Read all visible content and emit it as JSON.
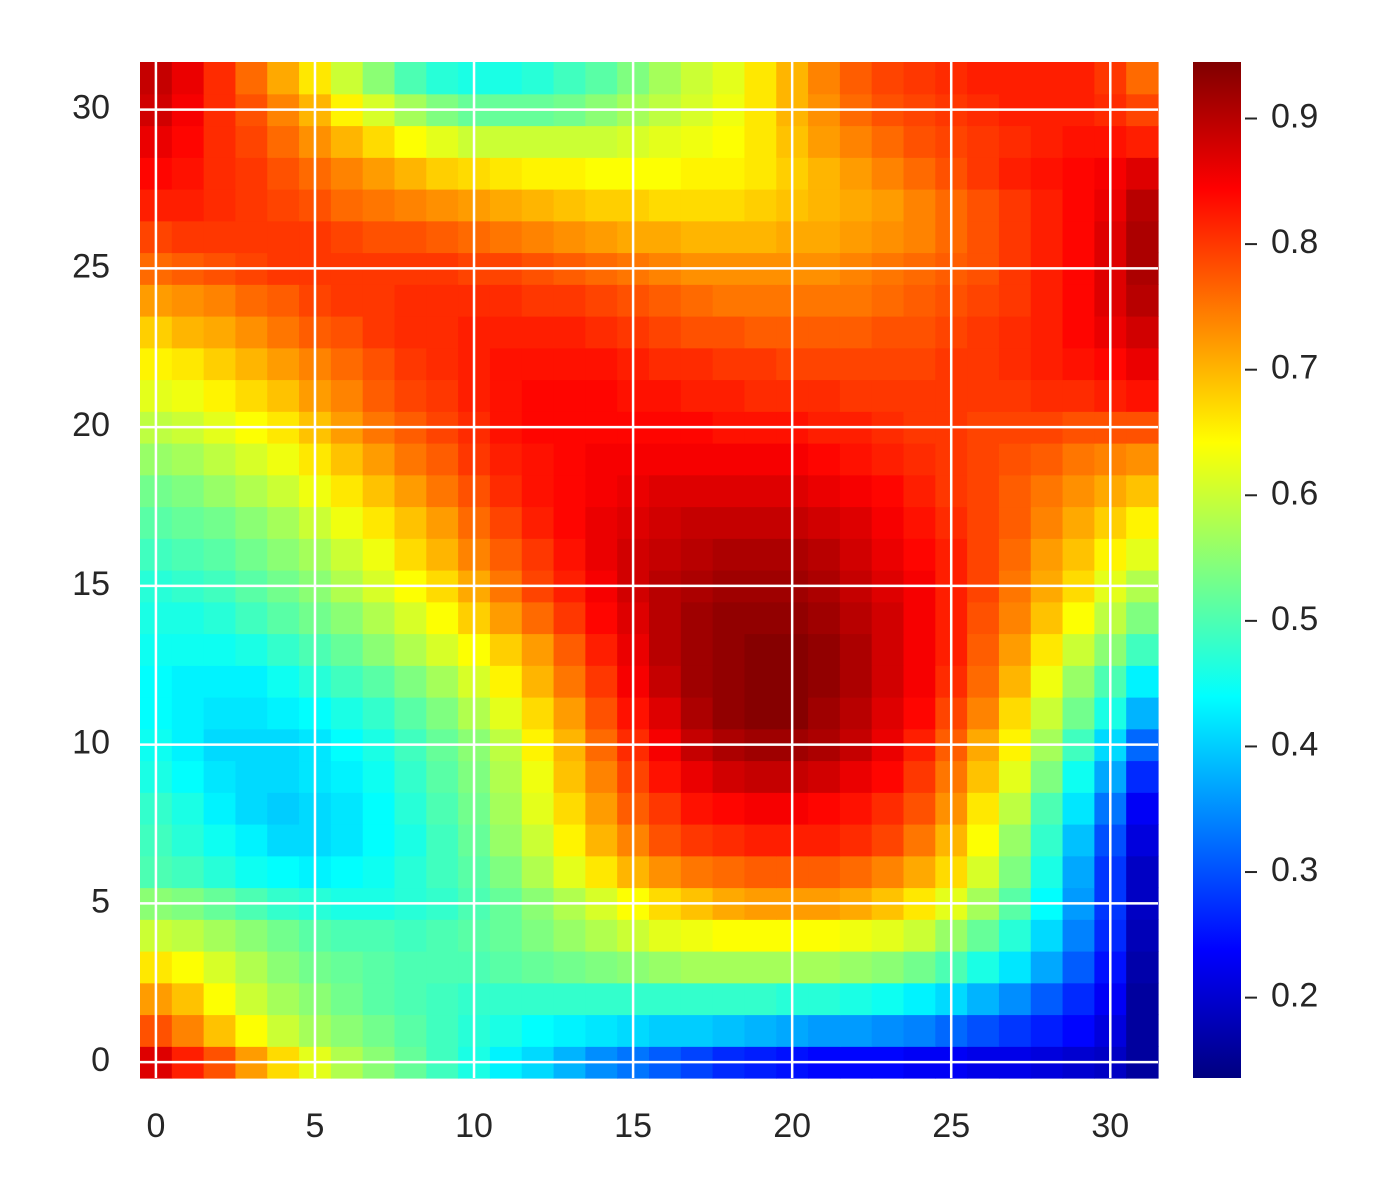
{
  "chart_data": {
    "type": "heatmap",
    "colormap": "jet",
    "clim": [
      0.136,
      0.945
    ],
    "xlim": [
      -0.5,
      31.5
    ],
    "ylim": [
      -0.5,
      31.5
    ],
    "xticks": [
      0,
      5,
      10,
      15,
      20,
      25,
      30
    ],
    "yticks": [
      0,
      5,
      10,
      15,
      20,
      25,
      30
    ],
    "colorbar_ticks": [
      0.2,
      0.3,
      0.4,
      0.5,
      0.6,
      0.7,
      0.8,
      0.9
    ],
    "grid": true,
    "grid_color": "#ffffff",
    "z": [
      [
        0.87,
        0.82,
        0.78,
        0.72,
        0.67,
        0.62,
        0.58,
        0.55,
        0.52,
        0.49,
        0.46,
        0.43,
        0.41,
        0.38,
        0.35,
        0.33,
        0.31,
        0.29,
        0.27,
        0.26,
        0.25,
        0.24,
        0.24,
        0.24,
        0.23,
        0.23,
        0.22,
        0.22,
        0.21,
        0.2,
        0.19,
        0.16
      ],
      [
        0.78,
        0.74,
        0.69,
        0.64,
        0.6,
        0.57,
        0.55,
        0.53,
        0.51,
        0.49,
        0.47,
        0.46,
        0.44,
        0.43,
        0.42,
        0.41,
        0.4,
        0.4,
        0.39,
        0.38,
        0.37,
        0.36,
        0.36,
        0.35,
        0.34,
        0.32,
        0.3,
        0.28,
        0.26,
        0.24,
        0.21,
        0.16
      ],
      [
        0.72,
        0.69,
        0.64,
        0.6,
        0.57,
        0.55,
        0.53,
        0.51,
        0.5,
        0.49,
        0.48,
        0.48,
        0.48,
        0.48,
        0.48,
        0.48,
        0.48,
        0.48,
        0.48,
        0.48,
        0.47,
        0.47,
        0.46,
        0.45,
        0.43,
        0.41,
        0.38,
        0.35,
        0.31,
        0.27,
        0.23,
        0.16
      ],
      [
        0.66,
        0.64,
        0.61,
        0.58,
        0.55,
        0.53,
        0.52,
        0.51,
        0.5,
        0.5,
        0.5,
        0.51,
        0.52,
        0.53,
        0.54,
        0.55,
        0.56,
        0.57,
        0.57,
        0.57,
        0.57,
        0.57,
        0.56,
        0.55,
        0.53,
        0.5,
        0.46,
        0.42,
        0.37,
        0.31,
        0.25,
        0.17
      ],
      [
        0.6,
        0.59,
        0.57,
        0.55,
        0.53,
        0.51,
        0.5,
        0.5,
        0.49,
        0.5,
        0.51,
        0.52,
        0.54,
        0.56,
        0.58,
        0.6,
        0.62,
        0.63,
        0.64,
        0.64,
        0.64,
        0.64,
        0.63,
        0.62,
        0.6,
        0.56,
        0.52,
        0.47,
        0.41,
        0.34,
        0.27,
        0.18
      ],
      [
        0.55,
        0.54,
        0.52,
        0.5,
        0.48,
        0.47,
        0.46,
        0.46,
        0.47,
        0.48,
        0.5,
        0.52,
        0.55,
        0.58,
        0.61,
        0.64,
        0.67,
        0.69,
        0.71,
        0.72,
        0.72,
        0.72,
        0.71,
        0.69,
        0.66,
        0.62,
        0.57,
        0.51,
        0.44,
        0.36,
        0.28,
        0.19
      ],
      [
        0.5,
        0.49,
        0.47,
        0.45,
        0.44,
        0.43,
        0.44,
        0.45,
        0.47,
        0.49,
        0.51,
        0.54,
        0.58,
        0.62,
        0.66,
        0.7,
        0.73,
        0.75,
        0.76,
        0.77,
        0.77,
        0.77,
        0.76,
        0.74,
        0.71,
        0.67,
        0.61,
        0.54,
        0.46,
        0.37,
        0.28,
        0.19
      ],
      [
        0.49,
        0.47,
        0.45,
        0.43,
        0.41,
        0.41,
        0.42,
        0.44,
        0.46,
        0.49,
        0.52,
        0.56,
        0.6,
        0.65,
        0.7,
        0.74,
        0.78,
        0.8,
        0.81,
        0.82,
        0.82,
        0.82,
        0.81,
        0.79,
        0.75,
        0.7,
        0.64,
        0.56,
        0.48,
        0.39,
        0.3,
        0.21
      ],
      [
        0.48,
        0.46,
        0.43,
        0.41,
        0.4,
        0.41,
        0.42,
        0.44,
        0.47,
        0.5,
        0.53,
        0.57,
        0.62,
        0.67,
        0.72,
        0.77,
        0.8,
        0.83,
        0.84,
        0.85,
        0.85,
        0.84,
        0.83,
        0.81,
        0.78,
        0.73,
        0.66,
        0.59,
        0.5,
        0.42,
        0.33,
        0.23
      ],
      [
        0.46,
        0.44,
        0.42,
        0.41,
        0.41,
        0.42,
        0.43,
        0.45,
        0.48,
        0.51,
        0.54,
        0.58,
        0.63,
        0.69,
        0.74,
        0.79,
        0.83,
        0.86,
        0.88,
        0.89,
        0.89,
        0.88,
        0.86,
        0.84,
        0.8,
        0.75,
        0.69,
        0.62,
        0.54,
        0.45,
        0.37,
        0.27
      ],
      [
        0.45,
        0.43,
        0.41,
        0.41,
        0.41,
        0.42,
        0.44,
        0.46,
        0.49,
        0.52,
        0.55,
        0.59,
        0.65,
        0.7,
        0.76,
        0.81,
        0.85,
        0.89,
        0.91,
        0.92,
        0.92,
        0.91,
        0.89,
        0.86,
        0.82,
        0.77,
        0.71,
        0.65,
        0.57,
        0.49,
        0.41,
        0.32
      ],
      [
        0.44,
        0.43,
        0.42,
        0.42,
        0.43,
        0.44,
        0.46,
        0.48,
        0.51,
        0.54,
        0.58,
        0.62,
        0.67,
        0.72,
        0.78,
        0.83,
        0.87,
        0.91,
        0.93,
        0.94,
        0.94,
        0.92,
        0.9,
        0.87,
        0.84,
        0.79,
        0.74,
        0.67,
        0.6,
        0.53,
        0.46,
        0.38
      ],
      [
        0.44,
        0.43,
        0.43,
        0.43,
        0.45,
        0.47,
        0.49,
        0.51,
        0.54,
        0.57,
        0.61,
        0.65,
        0.7,
        0.75,
        0.8,
        0.85,
        0.89,
        0.92,
        0.93,
        0.94,
        0.94,
        0.93,
        0.91,
        0.88,
        0.85,
        0.81,
        0.76,
        0.7,
        0.63,
        0.56,
        0.5,
        0.43
      ],
      [
        0.45,
        0.45,
        0.45,
        0.46,
        0.48,
        0.5,
        0.52,
        0.55,
        0.58,
        0.61,
        0.64,
        0.68,
        0.72,
        0.77,
        0.82,
        0.86,
        0.9,
        0.92,
        0.93,
        0.94,
        0.94,
        0.93,
        0.91,
        0.88,
        0.85,
        0.82,
        0.77,
        0.72,
        0.66,
        0.6,
        0.55,
        0.49
      ],
      [
        0.46,
        0.46,
        0.47,
        0.49,
        0.51,
        0.53,
        0.55,
        0.58,
        0.61,
        0.64,
        0.68,
        0.72,
        0.76,
        0.8,
        0.84,
        0.87,
        0.9,
        0.92,
        0.93,
        0.93,
        0.93,
        0.92,
        0.9,
        0.88,
        0.85,
        0.82,
        0.78,
        0.74,
        0.69,
        0.64,
        0.59,
        0.54
      ],
      [
        0.47,
        0.48,
        0.49,
        0.51,
        0.53,
        0.55,
        0.58,
        0.61,
        0.64,
        0.67,
        0.71,
        0.75,
        0.79,
        0.82,
        0.85,
        0.88,
        0.9,
        0.91,
        0.92,
        0.92,
        0.92,
        0.91,
        0.89,
        0.87,
        0.85,
        0.82,
        0.79,
        0.75,
        0.71,
        0.67,
        0.62,
        0.58
      ],
      [
        0.49,
        0.5,
        0.51,
        0.53,
        0.55,
        0.57,
        0.6,
        0.63,
        0.67,
        0.7,
        0.74,
        0.77,
        0.8,
        0.83,
        0.86,
        0.88,
        0.89,
        0.9,
        0.91,
        0.91,
        0.91,
        0.9,
        0.88,
        0.86,
        0.84,
        0.82,
        0.79,
        0.76,
        0.72,
        0.69,
        0.65,
        0.62
      ],
      [
        0.51,
        0.52,
        0.53,
        0.55,
        0.57,
        0.6,
        0.63,
        0.66,
        0.69,
        0.72,
        0.76,
        0.79,
        0.82,
        0.84,
        0.86,
        0.87,
        0.88,
        0.89,
        0.89,
        0.89,
        0.89,
        0.88,
        0.87,
        0.85,
        0.83,
        0.81,
        0.79,
        0.77,
        0.74,
        0.71,
        0.68,
        0.65
      ],
      [
        0.53,
        0.54,
        0.56,
        0.58,
        0.6,
        0.63,
        0.66,
        0.69,
        0.72,
        0.75,
        0.78,
        0.81,
        0.83,
        0.84,
        0.85,
        0.86,
        0.87,
        0.87,
        0.87,
        0.87,
        0.87,
        0.86,
        0.85,
        0.84,
        0.82,
        0.8,
        0.79,
        0.77,
        0.75,
        0.73,
        0.71,
        0.69
      ],
      [
        0.56,
        0.57,
        0.59,
        0.61,
        0.63,
        0.66,
        0.69,
        0.72,
        0.75,
        0.77,
        0.8,
        0.82,
        0.83,
        0.84,
        0.85,
        0.85,
        0.85,
        0.85,
        0.85,
        0.85,
        0.85,
        0.84,
        0.83,
        0.82,
        0.81,
        0.8,
        0.79,
        0.78,
        0.77,
        0.75,
        0.74,
        0.73
      ],
      [
        0.59,
        0.6,
        0.62,
        0.64,
        0.66,
        0.69,
        0.72,
        0.75,
        0.77,
        0.79,
        0.81,
        0.83,
        0.84,
        0.84,
        0.84,
        0.84,
        0.84,
        0.84,
        0.83,
        0.83,
        0.83,
        0.82,
        0.82,
        0.81,
        0.8,
        0.8,
        0.79,
        0.79,
        0.79,
        0.78,
        0.78,
        0.78
      ],
      [
        0.62,
        0.63,
        0.65,
        0.67,
        0.69,
        0.72,
        0.74,
        0.77,
        0.79,
        0.8,
        0.82,
        0.83,
        0.84,
        0.84,
        0.84,
        0.83,
        0.83,
        0.82,
        0.82,
        0.81,
        0.81,
        0.81,
        0.8,
        0.8,
        0.8,
        0.8,
        0.8,
        0.8,
        0.81,
        0.81,
        0.82,
        0.83
      ],
      [
        0.65,
        0.66,
        0.68,
        0.7,
        0.72,
        0.74,
        0.76,
        0.78,
        0.8,
        0.81,
        0.82,
        0.83,
        0.83,
        0.83,
        0.83,
        0.82,
        0.81,
        0.81,
        0.8,
        0.8,
        0.79,
        0.79,
        0.79,
        0.79,
        0.79,
        0.8,
        0.8,
        0.81,
        0.82,
        0.83,
        0.84,
        0.86
      ],
      [
        0.68,
        0.7,
        0.71,
        0.73,
        0.75,
        0.77,
        0.78,
        0.8,
        0.81,
        0.81,
        0.82,
        0.82,
        0.82,
        0.82,
        0.81,
        0.8,
        0.79,
        0.78,
        0.78,
        0.77,
        0.77,
        0.77,
        0.77,
        0.78,
        0.78,
        0.79,
        0.8,
        0.81,
        0.82,
        0.84,
        0.86,
        0.88
      ],
      [
        0.72,
        0.73,
        0.74,
        0.76,
        0.77,
        0.79,
        0.8,
        0.8,
        0.81,
        0.81,
        0.81,
        0.81,
        0.8,
        0.8,
        0.79,
        0.78,
        0.77,
        0.76,
        0.75,
        0.75,
        0.75,
        0.75,
        0.75,
        0.76,
        0.77,
        0.78,
        0.79,
        0.8,
        0.82,
        0.84,
        0.87,
        0.9
      ],
      [
        0.76,
        0.77,
        0.78,
        0.79,
        0.8,
        0.8,
        0.8,
        0.8,
        0.8,
        0.8,
        0.79,
        0.79,
        0.78,
        0.77,
        0.76,
        0.75,
        0.74,
        0.73,
        0.73,
        0.73,
        0.73,
        0.73,
        0.74,
        0.75,
        0.76,
        0.77,
        0.78,
        0.8,
        0.82,
        0.84,
        0.87,
        0.91
      ],
      [
        0.79,
        0.8,
        0.8,
        0.8,
        0.8,
        0.8,
        0.79,
        0.78,
        0.78,
        0.77,
        0.76,
        0.75,
        0.74,
        0.73,
        0.72,
        0.71,
        0.71,
        0.7,
        0.7,
        0.7,
        0.71,
        0.71,
        0.72,
        0.73,
        0.74,
        0.76,
        0.78,
        0.8,
        0.82,
        0.84,
        0.87,
        0.91
      ],
      [
        0.82,
        0.82,
        0.81,
        0.8,
        0.79,
        0.78,
        0.76,
        0.75,
        0.74,
        0.73,
        0.72,
        0.71,
        0.7,
        0.69,
        0.68,
        0.68,
        0.67,
        0.67,
        0.67,
        0.68,
        0.69,
        0.7,
        0.71,
        0.72,
        0.74,
        0.76,
        0.78,
        0.8,
        0.82,
        0.84,
        0.86,
        0.9
      ],
      [
        0.84,
        0.83,
        0.81,
        0.8,
        0.78,
        0.76,
        0.74,
        0.72,
        0.7,
        0.68,
        0.67,
        0.66,
        0.65,
        0.65,
        0.64,
        0.64,
        0.64,
        0.65,
        0.65,
        0.66,
        0.68,
        0.7,
        0.72,
        0.74,
        0.76,
        0.78,
        0.8,
        0.82,
        0.83,
        0.84,
        0.85,
        0.87
      ],
      [
        0.86,
        0.84,
        0.81,
        0.79,
        0.76,
        0.73,
        0.7,
        0.67,
        0.64,
        0.62,
        0.6,
        0.6,
        0.6,
        0.6,
        0.6,
        0.61,
        0.62,
        0.63,
        0.64,
        0.66,
        0.69,
        0.72,
        0.74,
        0.76,
        0.78,
        0.79,
        0.8,
        0.81,
        0.82,
        0.83,
        0.83,
        0.82
      ],
      [
        0.88,
        0.85,
        0.81,
        0.78,
        0.74,
        0.7,
        0.65,
        0.61,
        0.57,
        0.54,
        0.52,
        0.52,
        0.52,
        0.53,
        0.55,
        0.57,
        0.59,
        0.61,
        0.63,
        0.66,
        0.7,
        0.73,
        0.76,
        0.78,
        0.79,
        0.8,
        0.81,
        0.82,
        0.82,
        0.82,
        0.81,
        0.79
      ],
      [
        0.89,
        0.86,
        0.81,
        0.76,
        0.71,
        0.66,
        0.6,
        0.55,
        0.5,
        0.47,
        0.46,
        0.46,
        0.47,
        0.49,
        0.51,
        0.54,
        0.57,
        0.6,
        0.62,
        0.66,
        0.7,
        0.74,
        0.77,
        0.79,
        0.8,
        0.81,
        0.82,
        0.82,
        0.82,
        0.82,
        0.8,
        0.76
      ]
    ]
  }
}
